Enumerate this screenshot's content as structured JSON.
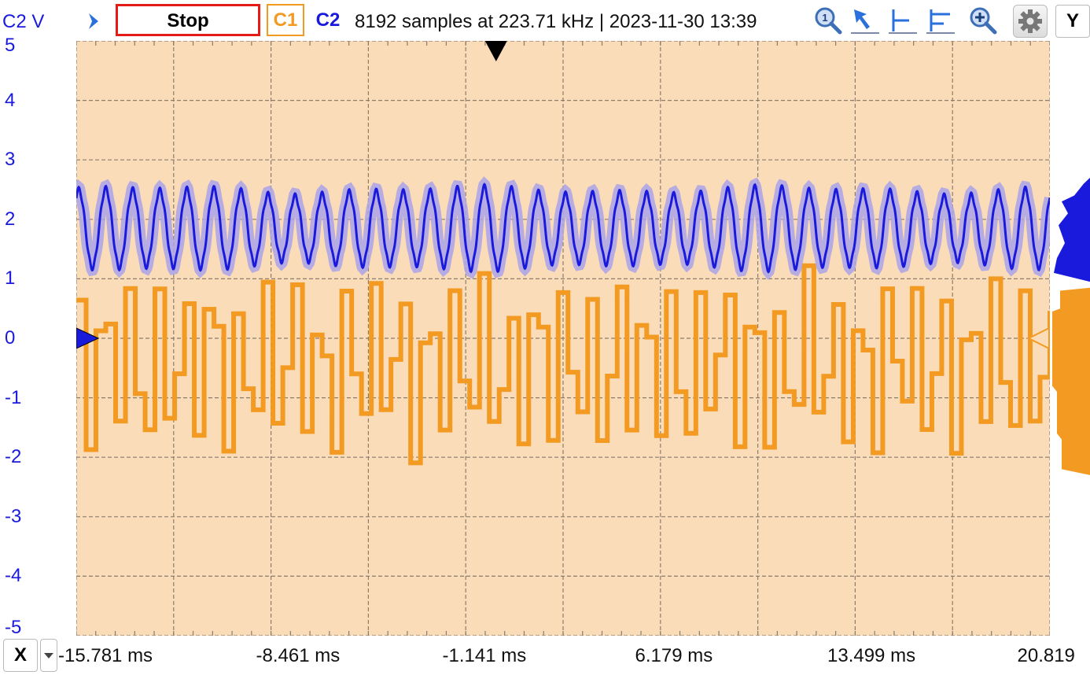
{
  "toolbar": {
    "y_unit_label": "C2 V",
    "run_button_label": "Stop",
    "channel1_label": "C1",
    "channel2_label": "C2",
    "status": "8192 samples at 223.71 kHz | 2023-11-30 13:39",
    "y_button_label": "Y",
    "icons": [
      "zoom-in-icon",
      "cursor-icon",
      "cursor-levels-icon",
      "cursor-levels-alt-icon",
      "zoom-fit-icon",
      "gear-icon"
    ]
  },
  "colors": {
    "plot_background": "#fbdcb8",
    "grid": "#8a7d6d",
    "channel1": "#f39a22",
    "channel2": "#1a1adc",
    "channel2_envelope": "#a9a3e8",
    "stop_border": "#e41b17"
  },
  "y_axis": {
    "ticks": [
      "5",
      "4",
      "3",
      "2",
      "1",
      "0",
      "-1",
      "-2",
      "-3",
      "-4",
      "-5"
    ]
  },
  "x_axis": {
    "button_label": "X",
    "ticks": [
      "-15.781 ms",
      "-8.461 ms",
      "-1.141 ms",
      "6.179 ms",
      "13.499 ms",
      "20.819"
    ]
  },
  "signals": {
    "y_range": [
      -5,
      5
    ],
    "time_range_ms": [
      -15.781,
      20.819
    ],
    "trigger_time_ms": 0,
    "channel2": {
      "offset_v": 1.85,
      "amplitude_v": 0.62,
      "cycles": 36
    },
    "channel1": {
      "offset_v": -0.45,
      "amplitude_v": 1.35,
      "cycles": 36,
      "step_ms": 0.37
    }
  }
}
